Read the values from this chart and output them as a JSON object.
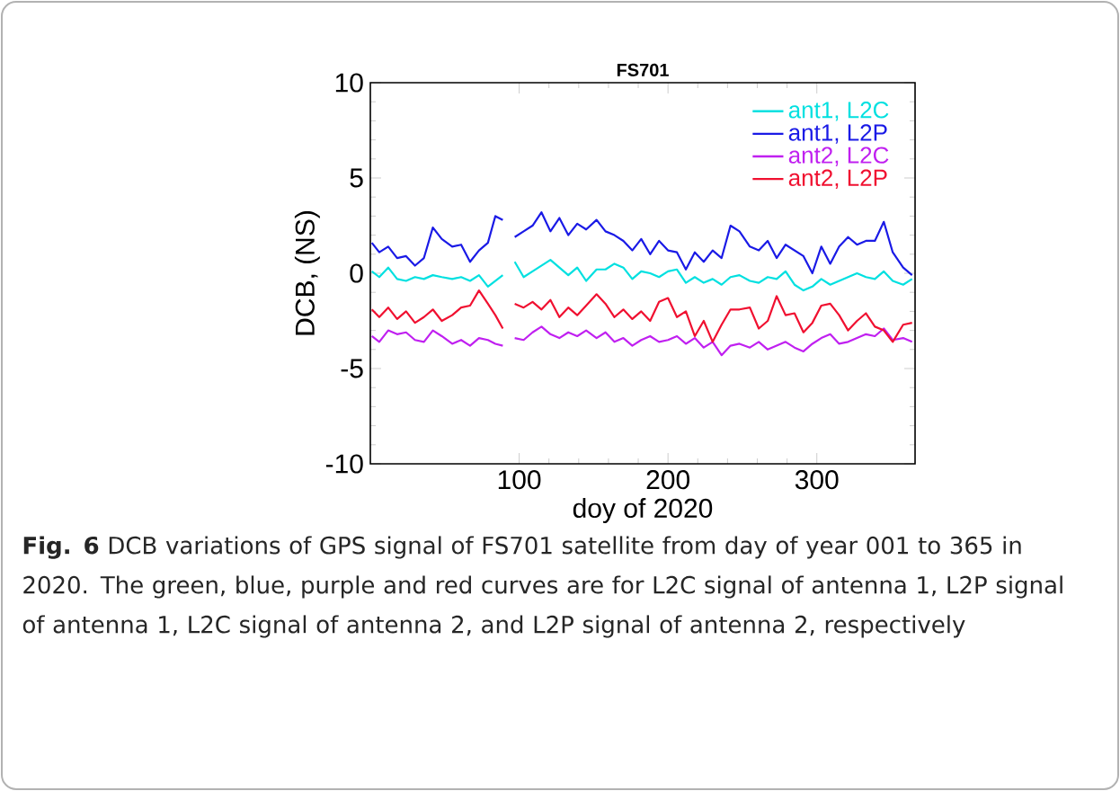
{
  "chart_data": {
    "type": "line",
    "title": "FS701",
    "xlabel": "doy of 2020",
    "ylabel": "DCB, (NS)",
    "x": [
      1,
      6,
      12,
      18,
      24,
      30,
      36,
      42,
      48,
      55,
      61,
      67,
      73,
      79,
      84,
      89,
      94,
      97,
      103,
      109,
      115,
      121,
      127,
      133,
      139,
      145,
      152,
      158,
      164,
      170,
      176,
      182,
      188,
      194,
      200,
      206,
      212,
      218,
      224,
      230,
      236,
      242,
      248,
      255,
      261,
      267,
      273,
      279,
      285,
      291,
      297,
      303,
      309,
      315,
      321,
      327,
      333,
      339,
      345,
      351,
      358,
      364
    ],
    "series": [
      {
        "name": "ant1, L2C",
        "color": "#00e0e0",
        "values": [
          0.1,
          -0.2,
          0.3,
          -0.3,
          -0.4,
          -0.2,
          -0.3,
          -0.1,
          -0.2,
          -0.3,
          -0.2,
          -0.4,
          -0.1,
          -0.7,
          -0.4,
          -0.1,
          null,
          0.6,
          -0.2,
          0.1,
          0.4,
          0.7,
          0.3,
          -0.1,
          0.3,
          -0.4,
          0.2,
          0.2,
          0.5,
          0.3,
          -0.3,
          0.1,
          0.0,
          -0.2,
          0.1,
          0.2,
          -0.5,
          -0.2,
          -0.5,
          -0.3,
          -0.6,
          -0.2,
          -0.1,
          -0.4,
          -0.5,
          -0.2,
          -0.3,
          0.1,
          -0.6,
          -0.9,
          -0.7,
          -0.3,
          -0.6,
          -0.4,
          -0.2,
          0.0,
          -0.2,
          -0.3,
          0.1,
          -0.4,
          -0.6,
          -0.3
        ]
      },
      {
        "name": "ant1, L2P",
        "color": "#1a1ae6",
        "values": [
          1.6,
          1.1,
          1.4,
          0.8,
          0.9,
          0.4,
          0.8,
          2.4,
          1.8,
          1.4,
          1.5,
          0.6,
          1.2,
          1.6,
          3.0,
          2.8,
          null,
          1.9,
          2.2,
          2.5,
          3.2,
          2.2,
          2.9,
          2.0,
          2.6,
          2.3,
          2.8,
          2.2,
          2.0,
          1.7,
          1.2,
          1.8,
          1.0,
          1.7,
          1.2,
          1.1,
          0.2,
          1.1,
          0.6,
          1.2,
          0.8,
          2.5,
          2.2,
          1.4,
          1.2,
          1.7,
          0.8,
          1.5,
          1.2,
          0.9,
          0.0,
          1.4,
          0.5,
          1.4,
          1.9,
          1.5,
          1.7,
          1.7,
          2.7,
          1.1,
          0.3,
          -0.1
        ]
      },
      {
        "name": "ant2, L2C",
        "color": "#c020f0",
        "values": [
          -3.3,
          -3.6,
          -3.0,
          -3.2,
          -3.1,
          -3.5,
          -3.6,
          -3.0,
          -3.3,
          -3.7,
          -3.5,
          -3.8,
          -3.4,
          -3.5,
          -3.7,
          -3.8,
          null,
          -3.4,
          -3.5,
          -3.1,
          -2.8,
          -3.2,
          -3.4,
          -3.1,
          -3.3,
          -3.0,
          -3.4,
          -3.1,
          -3.6,
          -3.4,
          -3.8,
          -3.5,
          -3.3,
          -3.6,
          -3.5,
          -3.3,
          -3.7,
          -3.4,
          -3.9,
          -3.6,
          -4.3,
          -3.8,
          -3.7,
          -3.9,
          -3.6,
          -4.0,
          -3.8,
          -3.6,
          -3.9,
          -4.1,
          -3.7,
          -3.4,
          -3.2,
          -3.7,
          -3.6,
          -3.4,
          -3.2,
          -3.3,
          -2.9,
          -3.5,
          -3.4,
          -3.6
        ]
      },
      {
        "name": "ant2, L2P",
        "color": "#f01030",
        "values": [
          -1.9,
          -2.3,
          -1.8,
          -2.4,
          -2.0,
          -2.6,
          -2.3,
          -1.9,
          -2.5,
          -2.2,
          -1.8,
          -1.7,
          -0.9,
          -1.6,
          -2.2,
          -2.9,
          null,
          -1.6,
          -1.8,
          -1.5,
          -1.9,
          -1.4,
          -2.3,
          -1.8,
          -2.2,
          -1.7,
          -1.1,
          -1.6,
          -2.3,
          -1.9,
          -2.4,
          -2.0,
          -2.5,
          -1.5,
          -1.3,
          -2.3,
          -2.0,
          -3.3,
          -2.5,
          -3.6,
          -2.7,
          -1.9,
          -1.9,
          -1.8,
          -2.9,
          -2.5,
          -1.2,
          -2.2,
          -2.1,
          -3.1,
          -2.6,
          -1.7,
          -1.6,
          -2.2,
          -3.0,
          -2.5,
          -2.1,
          -2.8,
          -3.0,
          -3.6,
          -2.7,
          -2.6
        ]
      }
    ],
    "xlim": [
      0,
      366
    ],
    "xticks": [
      100,
      200,
      300
    ],
    "ylim": [
      -10,
      10
    ],
    "yticks": [
      -10,
      -5,
      0,
      5,
      10
    ],
    "legend": "top right",
    "grid": false,
    "marker": "none",
    "line_style": "solid",
    "annotations": [
      "**Fig. 6** DCB variations of GPS signal of FS701 satellite from day of year 001 to 365 in 2020. The green, blue, purple and red curves are for L2C signal of antenna 1, L2P signal of antenna 1, L2C signal of antenna 2, and L2P signal of antenna 2, respectively"
    ]
  }
}
